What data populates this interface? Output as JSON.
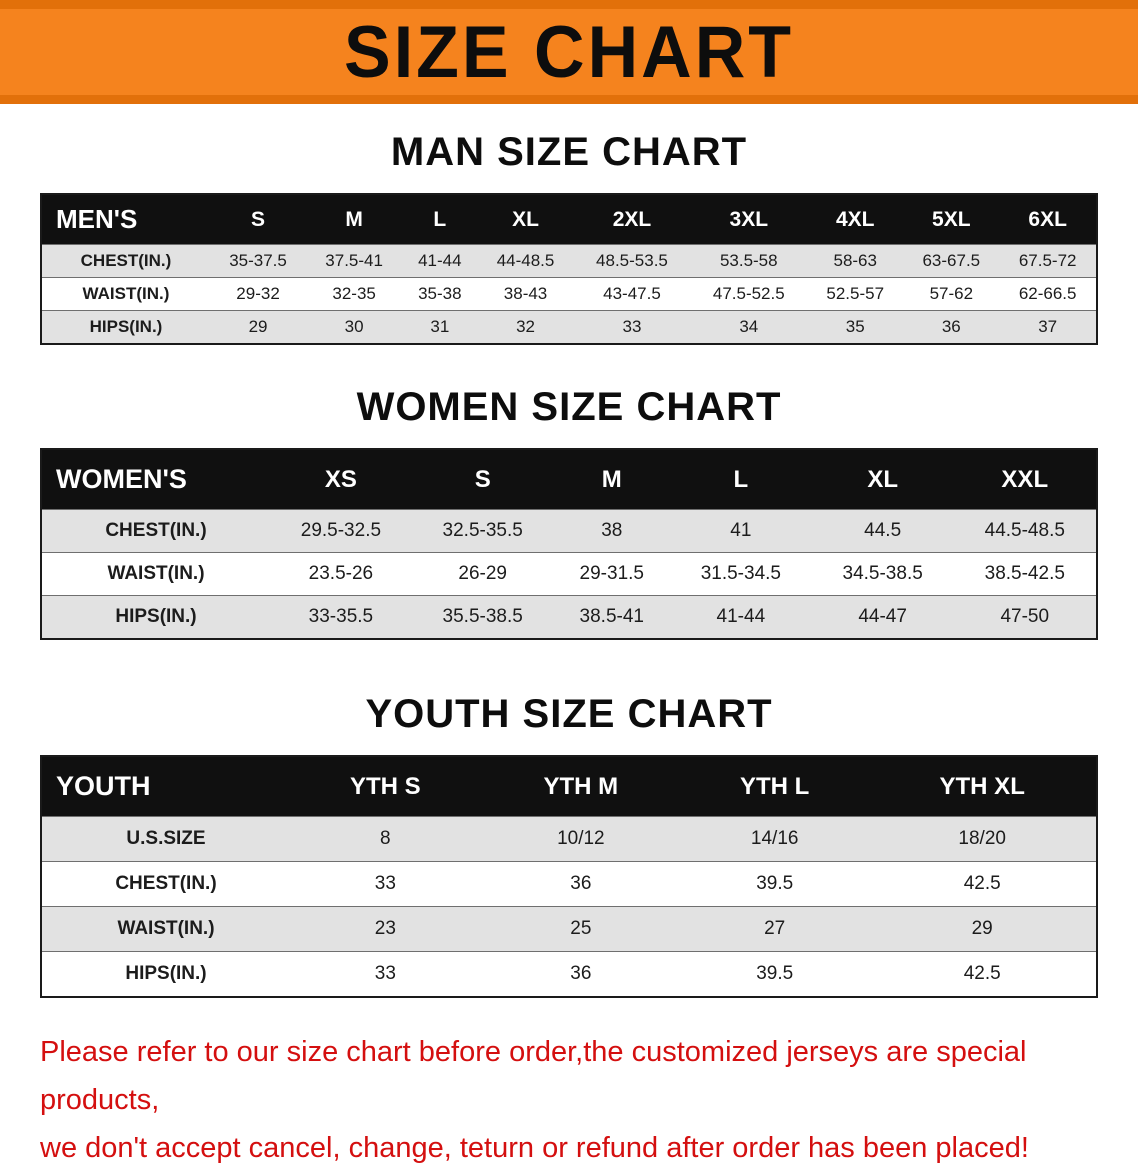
{
  "banner": {
    "title": "SIZE CHART"
  },
  "sections": {
    "men": {
      "heading": "MAN SIZE CHART",
      "table": {
        "header": [
          "MEN'S",
          "S",
          "M",
          "L",
          "XL",
          "2XL",
          "3XL",
          "4XL",
          "5XL",
          "6XL"
        ],
        "rows": [
          [
            "CHEST(IN.)",
            "35-37.5",
            "37.5-41",
            "41-44",
            "44-48.5",
            "48.5-53.5",
            "53.5-58",
            "58-63",
            "63-67.5",
            "67.5-72"
          ],
          [
            "WAIST(IN.)",
            "29-32",
            "32-35",
            "35-38",
            "38-43",
            "43-47.5",
            "47.5-52.5",
            "52.5-57",
            "57-62",
            "62-66.5"
          ],
          [
            "HIPS(IN.)",
            "29",
            "30",
            "31",
            "32",
            "33",
            "34",
            "35",
            "36",
            "37"
          ]
        ]
      }
    },
    "women": {
      "heading": "WOMEN SIZE CHART",
      "table": {
        "header": [
          "WOMEN'S",
          "XS",
          "S",
          "M",
          "L",
          "XL",
          "XXL"
        ],
        "rows": [
          [
            "CHEST(IN.)",
            "29.5-32.5",
            "32.5-35.5",
            "38",
            "41",
            "44.5",
            "44.5-48.5"
          ],
          [
            "WAIST(IN.)",
            "23.5-26",
            "26-29",
            "29-31.5",
            "31.5-34.5",
            "34.5-38.5",
            "38.5-42.5"
          ],
          [
            "HIPS(IN.)",
            "33-35.5",
            "35.5-38.5",
            "38.5-41",
            "41-44",
            "44-47",
            "47-50"
          ]
        ]
      }
    },
    "youth": {
      "heading": "YOUTH SIZE CHART",
      "table": {
        "header": [
          "YOUTH",
          "YTH S",
          "YTH M",
          "YTH L",
          "YTH XL"
        ],
        "rows": [
          [
            "U.S.SIZE",
            "8",
            "10/12",
            "14/16",
            "18/20"
          ],
          [
            "CHEST(IN.)",
            "33",
            "36",
            "39.5",
            "42.5"
          ],
          [
            "WAIST(IN.)",
            "23",
            "25",
            "27",
            "29"
          ],
          [
            "HIPS(IN.)",
            "33",
            "36",
            "39.5",
            "42.5"
          ]
        ]
      }
    }
  },
  "disclaimer": {
    "line1": "Please refer to our size chart before order,the customized jerseys are special products,",
    "line2": "we don't accept cancel, change, teturn or refund after order has been placed!"
  },
  "colors": {
    "banner_orange": "#f5831e",
    "header_black": "#101010",
    "disclaimer_red": "#d40f0f",
    "row_gray": "#e2e2e2"
  }
}
